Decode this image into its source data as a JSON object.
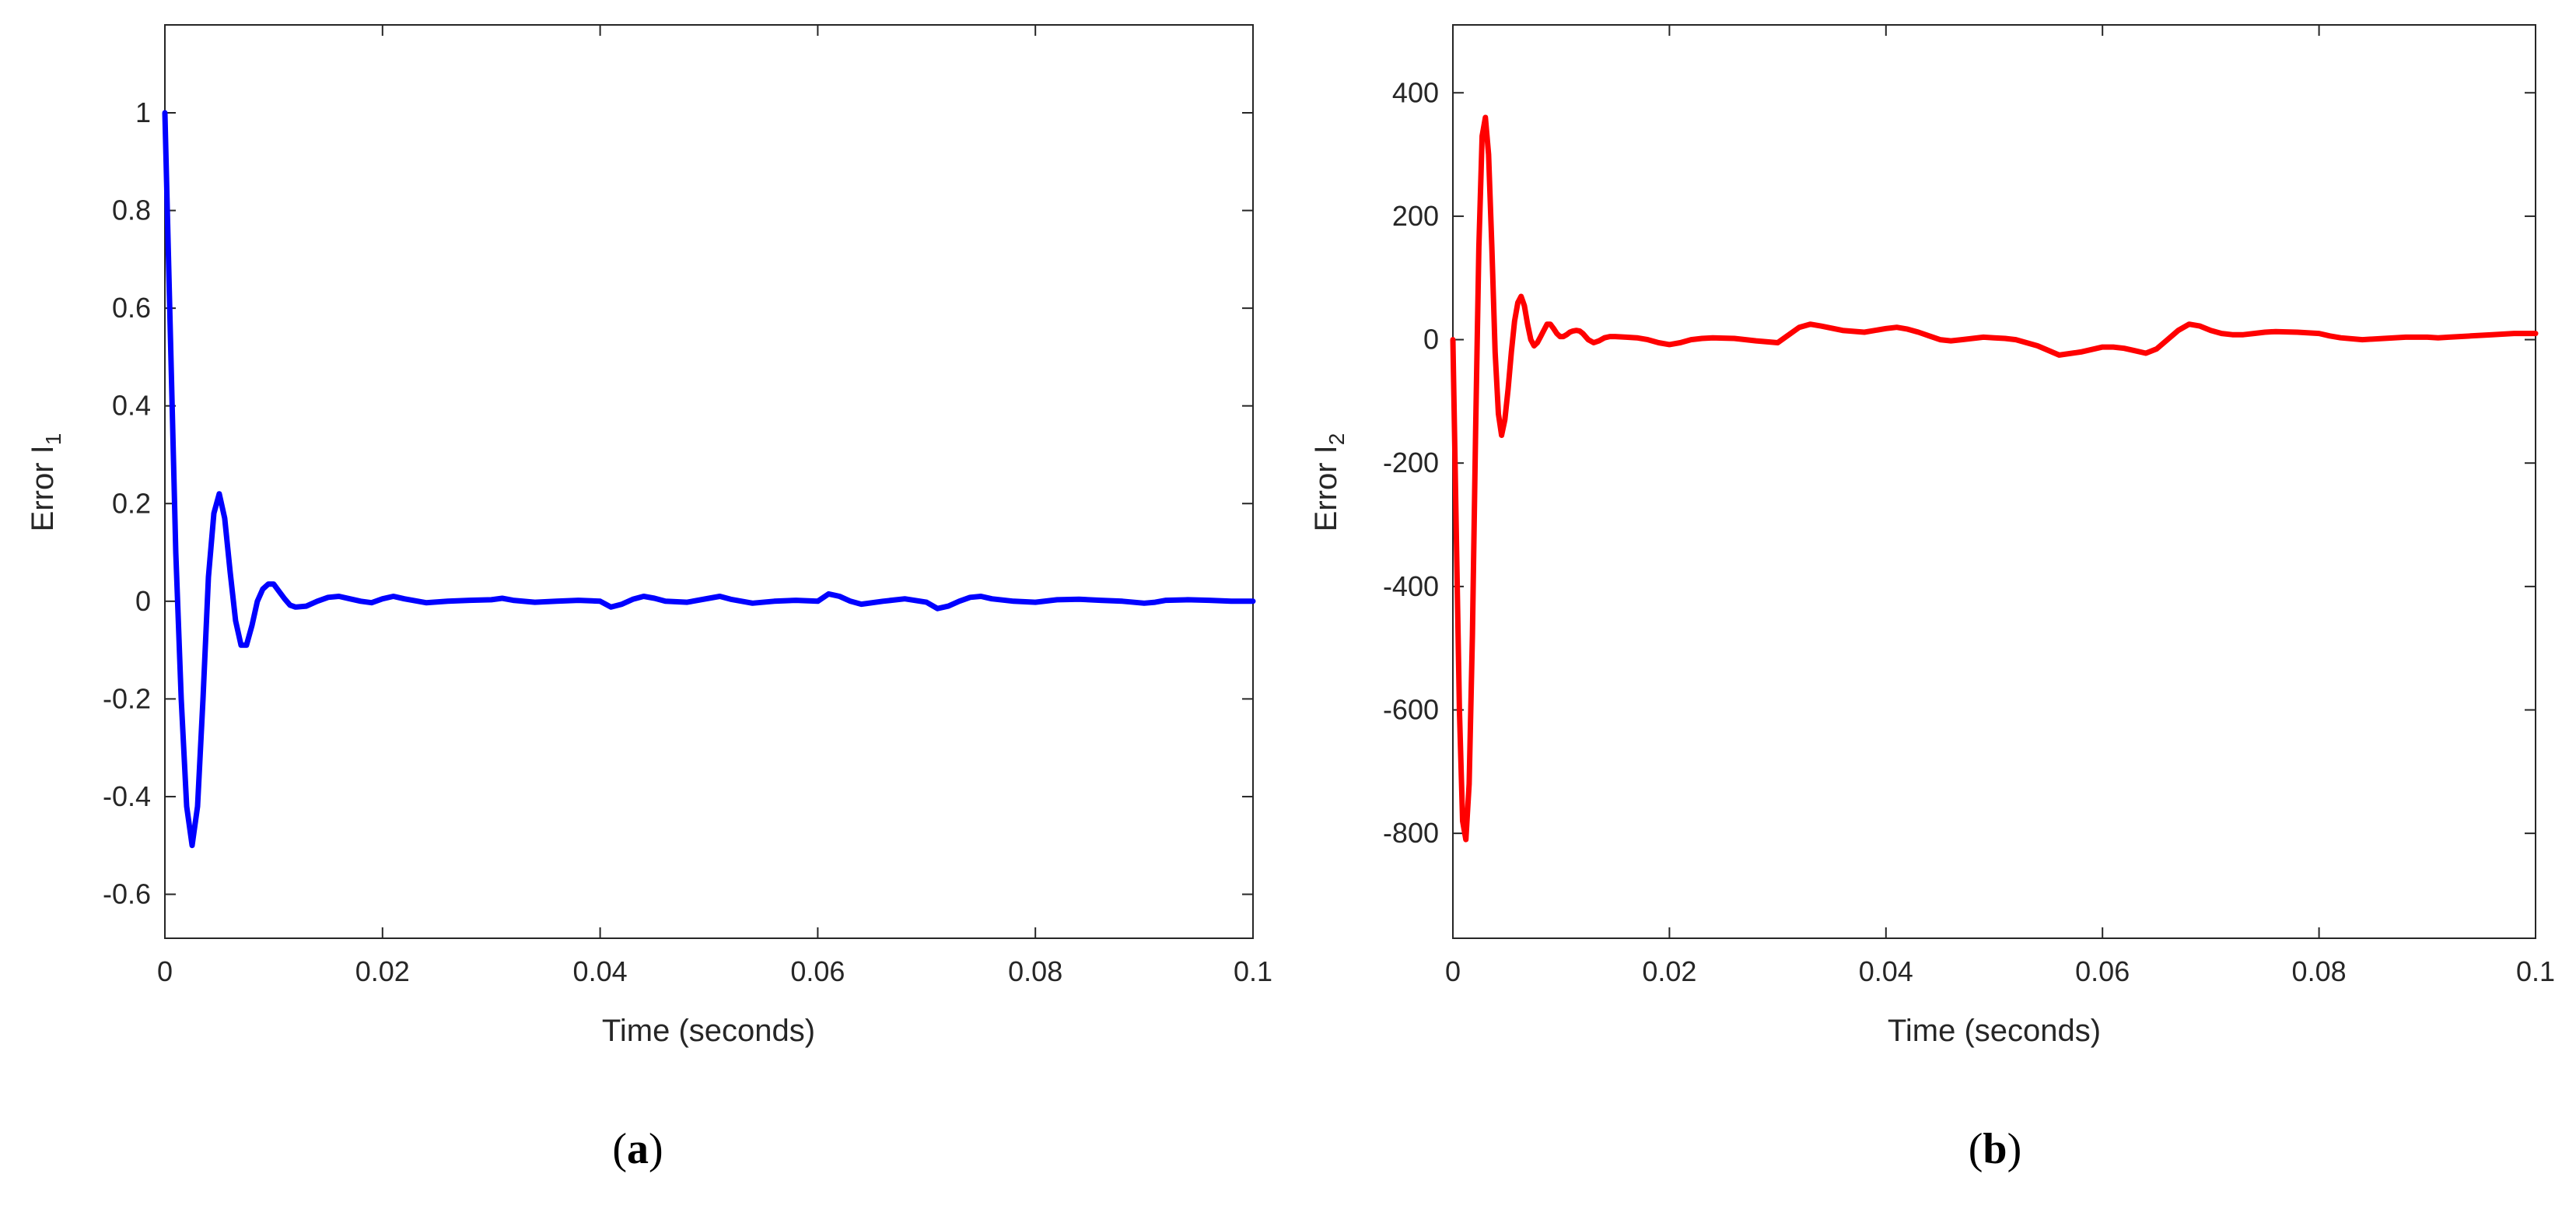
{
  "chart_data": [
    {
      "type": "line",
      "panel_label": "a",
      "title": "",
      "xlabel": "Time (seconds)",
      "ylabel_main": "Error I",
      "ylabel_sub": "1",
      "xlim": [
        0,
        0.1
      ],
      "ylim": [
        -0.69,
        1.18
      ],
      "xticks": [
        0,
        0.02,
        0.04,
        0.06,
        0.08,
        0.1
      ],
      "xtick_labels": [
        "0",
        "0.02",
        "0.04",
        "0.06",
        "0.08",
        "0.1"
      ],
      "yticks": [
        -0.6,
        -0.4,
        -0.2,
        0,
        0.2,
        0.4,
        0.6,
        0.8,
        1
      ],
      "ytick_labels": [
        "-0.6",
        "-0.4",
        "-0.2",
        "0",
        "0.2",
        "0.4",
        "0.6",
        "0.8",
        "1"
      ],
      "grid": false,
      "series": [
        {
          "color": "#0000ff",
          "x": [
            0,
            0.0005,
            0.001,
            0.0015,
            0.002,
            0.0025,
            0.003,
            0.0035,
            0.004,
            0.0045,
            0.005,
            0.0055,
            0.006,
            0.0065,
            0.007,
            0.0075,
            0.008,
            0.0085,
            0.009,
            0.0095,
            0.01,
            0.0105,
            0.011,
            0.0115,
            0.012,
            0.013,
            0.014,
            0.015,
            0.016,
            0.017,
            0.018,
            0.019,
            0.02,
            0.021,
            0.022,
            0.024,
            0.026,
            0.028,
            0.03,
            0.031,
            0.032,
            0.034,
            0.036,
            0.038,
            0.04,
            0.041,
            0.042,
            0.043,
            0.044,
            0.045,
            0.046,
            0.048,
            0.05,
            0.051,
            0.052,
            0.054,
            0.056,
            0.058,
            0.06,
            0.061,
            0.062,
            0.063,
            0.064,
            0.066,
            0.068,
            0.07,
            0.071,
            0.072,
            0.073,
            0.074,
            0.075,
            0.076,
            0.078,
            0.08,
            0.082,
            0.084,
            0.086,
            0.088,
            0.09,
            0.091,
            0.092,
            0.094,
            0.096,
            0.098,
            0.1
          ],
          "y": [
            1.0,
            0.55,
            0.1,
            -0.2,
            -0.42,
            -0.5,
            -0.42,
            -0.2,
            0.05,
            0.18,
            0.22,
            0.17,
            0.06,
            -0.04,
            -0.09,
            -0.09,
            -0.05,
            0.0,
            0.025,
            0.035,
            0.035,
            0.02,
            0.005,
            -0.008,
            -0.012,
            -0.01,
            0.0,
            0.008,
            0.01,
            0.005,
            0.0,
            -0.003,
            0.005,
            0.01,
            0.005,
            -0.003,
            0.0,
            0.002,
            0.003,
            0.006,
            0.002,
            -0.002,
            0.0,
            0.002,
            0.0,
            -0.012,
            -0.006,
            0.004,
            0.01,
            0.006,
            0.0,
            -0.002,
            0.006,
            0.01,
            0.004,
            -0.004,
            0.0,
            0.002,
            0.0,
            0.015,
            0.01,
            0.0,
            -0.006,
            0.0,
            0.005,
            -0.002,
            -0.015,
            -0.01,
            0.0,
            0.008,
            0.01,
            0.005,
            0.0,
            -0.002,
            0.003,
            0.004,
            0.002,
            0.0,
            -0.004,
            -0.002,
            0.002,
            0.003,
            0.002,
            0.0,
            0.0
          ]
        }
      ]
    },
    {
      "type": "line",
      "panel_label": "b",
      "title": "",
      "xlabel": "Time (seconds)",
      "ylabel_main": "Error I",
      "ylabel_sub": "2",
      "xlim": [
        0,
        0.1
      ],
      "ylim": [
        -970,
        510
      ],
      "xticks": [
        0,
        0.02,
        0.04,
        0.06,
        0.08,
        0.1
      ],
      "xtick_labels": [
        "0",
        "0.02",
        "0.04",
        "0.06",
        "0.08",
        "0.1"
      ],
      "yticks": [
        -800,
        -600,
        -400,
        -200,
        0,
        200,
        400
      ],
      "ytick_labels": [
        "-800",
        "-600",
        "-400",
        "-200",
        "0",
        "200",
        "400"
      ],
      "grid": false,
      "series": [
        {
          "color": "#ff0000",
          "x": [
            0,
            0.0003,
            0.0006,
            0.0009,
            0.0012,
            0.0015,
            0.0018,
            0.0021,
            0.0024,
            0.0027,
            0.003,
            0.0033,
            0.0036,
            0.0039,
            0.0042,
            0.0045,
            0.0048,
            0.0051,
            0.0054,
            0.0057,
            0.006,
            0.0063,
            0.0066,
            0.0069,
            0.0072,
            0.0075,
            0.0078,
            0.0081,
            0.0084,
            0.0087,
            0.009,
            0.0093,
            0.0096,
            0.0099,
            0.0102,
            0.0105,
            0.0108,
            0.0111,
            0.0114,
            0.0117,
            0.012,
            0.0125,
            0.013,
            0.0135,
            0.014,
            0.0145,
            0.015,
            0.016,
            0.017,
            0.018,
            0.019,
            0.02,
            0.021,
            0.022,
            0.023,
            0.024,
            0.026,
            0.028,
            0.03,
            0.032,
            0.033,
            0.034,
            0.036,
            0.038,
            0.04,
            0.041,
            0.042,
            0.043,
            0.044,
            0.045,
            0.046,
            0.047,
            0.048,
            0.049,
            0.05,
            0.051,
            0.052,
            0.054,
            0.056,
            0.058,
            0.06,
            0.061,
            0.062,
            0.063,
            0.064,
            0.065,
            0.066,
            0.067,
            0.068,
            0.069,
            0.07,
            0.071,
            0.072,
            0.073,
            0.074,
            0.075,
            0.076,
            0.078,
            0.08,
            0.081,
            0.082,
            0.084,
            0.086,
            0.088,
            0.09,
            0.091,
            0.092,
            0.094,
            0.096,
            0.098,
            0.1
          ],
          "y": [
            0,
            -300,
            -600,
            -780,
            -810,
            -720,
            -480,
            -150,
            150,
            330,
            360,
            300,
            150,
            -20,
            -120,
            -155,
            -130,
            -80,
            -20,
            30,
            60,
            70,
            55,
            25,
            0,
            -10,
            -5,
            5,
            15,
            25,
            25,
            18,
            10,
            5,
            5,
            8,
            12,
            14,
            15,
            14,
            10,
            0,
            -5,
            -2,
            3,
            5,
            5,
            4,
            3,
            0,
            -5,
            -8,
            -5,
            0,
            2,
            3,
            2,
            -2,
            -5,
            20,
            25,
            22,
            15,
            12,
            18,
            20,
            17,
            12,
            6,
            0,
            -2,
            0,
            2,
            4,
            3,
            2,
            0,
            -10,
            -25,
            -20,
            -12,
            -12,
            -14,
            -18,
            -22,
            -15,
            0,
            15,
            25,
            22,
            15,
            10,
            8,
            8,
            10,
            12,
            13,
            12,
            10,
            6,
            3,
            0,
            2,
            4,
            4,
            3,
            4,
            6,
            8,
            10,
            10
          ]
        }
      ]
    }
  ]
}
